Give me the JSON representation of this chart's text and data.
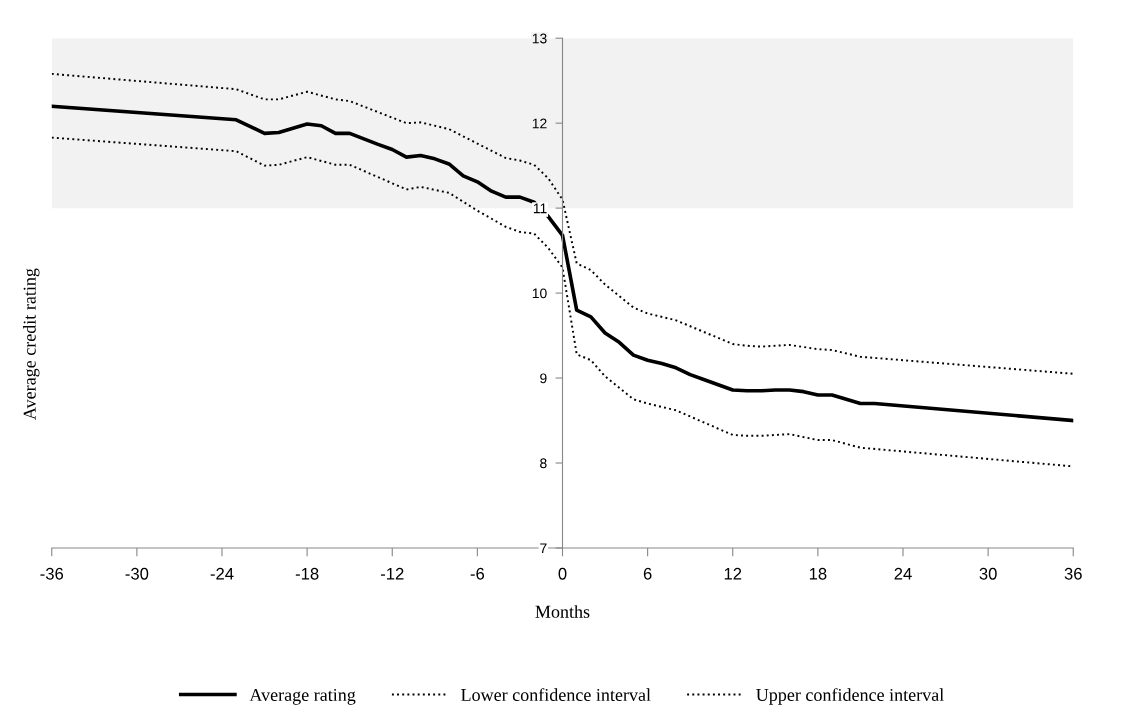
{
  "chart_data": {
    "type": "line",
    "xlabel": "Months",
    "ylabel": "Average credit rating",
    "xlim": [
      -36,
      36
    ],
    "xticks": [
      -36,
      -30,
      -24,
      -18,
      -12,
      -6,
      0,
      6,
      12,
      18,
      24,
      30,
      36
    ],
    "ylim": [
      7,
      13
    ],
    "yticks": [
      7,
      8,
      9,
      10,
      11,
      12,
      13
    ],
    "grid": false,
    "legend": "bottom",
    "bands": [
      {
        "axis": "y",
        "from": 11,
        "to": 13,
        "color": "#f2f2f2"
      }
    ],
    "series": [
      {
        "name": "Average rating",
        "color": "#000000",
        "line_style": "solid",
        "x": [
          -36,
          -23,
          -21,
          -20,
          -18,
          -17,
          -16,
          -15,
          -13,
          -12,
          -11,
          -10,
          -9,
          -8,
          -7,
          -6,
          -5,
          -4,
          -3,
          -2,
          -1,
          0,
          1,
          2,
          3,
          4,
          5,
          6,
          7,
          8,
          9,
          10,
          12,
          13,
          14,
          15,
          16,
          17,
          18,
          19,
          21,
          22,
          36
        ],
        "values": [
          12.2,
          12.04,
          11.88,
          11.89,
          11.99,
          11.97,
          11.88,
          11.88,
          11.75,
          11.69,
          11.6,
          11.62,
          11.58,
          11.52,
          11.38,
          11.31,
          11.2,
          11.13,
          11.13,
          11.07,
          10.9,
          10.68,
          9.8,
          9.72,
          9.53,
          9.42,
          9.27,
          9.21,
          9.17,
          9.12,
          9.04,
          8.98,
          8.86,
          8.85,
          8.85,
          8.86,
          8.86,
          8.84,
          8.8,
          8.8,
          8.7,
          8.7,
          8.5
        ]
      },
      {
        "name": "Lower confidence interval",
        "color": "#000000",
        "line_style": "dotted",
        "x": [
          -36,
          -23,
          -21,
          -20,
          -18,
          -16,
          -15,
          -11,
          -10,
          -8,
          -6,
          -4,
          -3,
          -2,
          -1,
          0,
          1,
          2,
          3,
          5,
          6,
          8,
          12,
          13,
          14,
          16,
          18,
          19,
          21,
          36
        ],
        "values": [
          11.83,
          11.67,
          11.5,
          11.51,
          11.6,
          11.51,
          11.51,
          11.22,
          11.25,
          11.18,
          10.97,
          10.78,
          10.72,
          10.7,
          10.53,
          10.3,
          9.28,
          9.21,
          9.02,
          8.75,
          8.7,
          8.62,
          8.33,
          8.32,
          8.32,
          8.34,
          8.27,
          8.27,
          8.18,
          7.96
        ]
      },
      {
        "name": "Upper confidence interval",
        "color": "#000000",
        "line_style": "dotted",
        "x": [
          -36,
          -23,
          -21,
          -20,
          -18,
          -16,
          -15,
          -11,
          -10,
          -8,
          -6,
          -4,
          -3,
          -2,
          -1,
          0,
          1,
          2,
          3,
          5,
          6,
          8,
          12,
          13,
          14,
          16,
          18,
          19,
          21,
          36
        ],
        "values": [
          12.58,
          12.4,
          12.28,
          12.28,
          12.37,
          12.28,
          12.26,
          12.0,
          12.01,
          11.93,
          11.76,
          11.59,
          11.56,
          11.51,
          11.35,
          11.1,
          10.35,
          10.27,
          10.1,
          9.83,
          9.76,
          9.68,
          9.4,
          9.38,
          9.37,
          9.39,
          9.34,
          9.33,
          9.25,
          9.05
        ]
      }
    ]
  }
}
